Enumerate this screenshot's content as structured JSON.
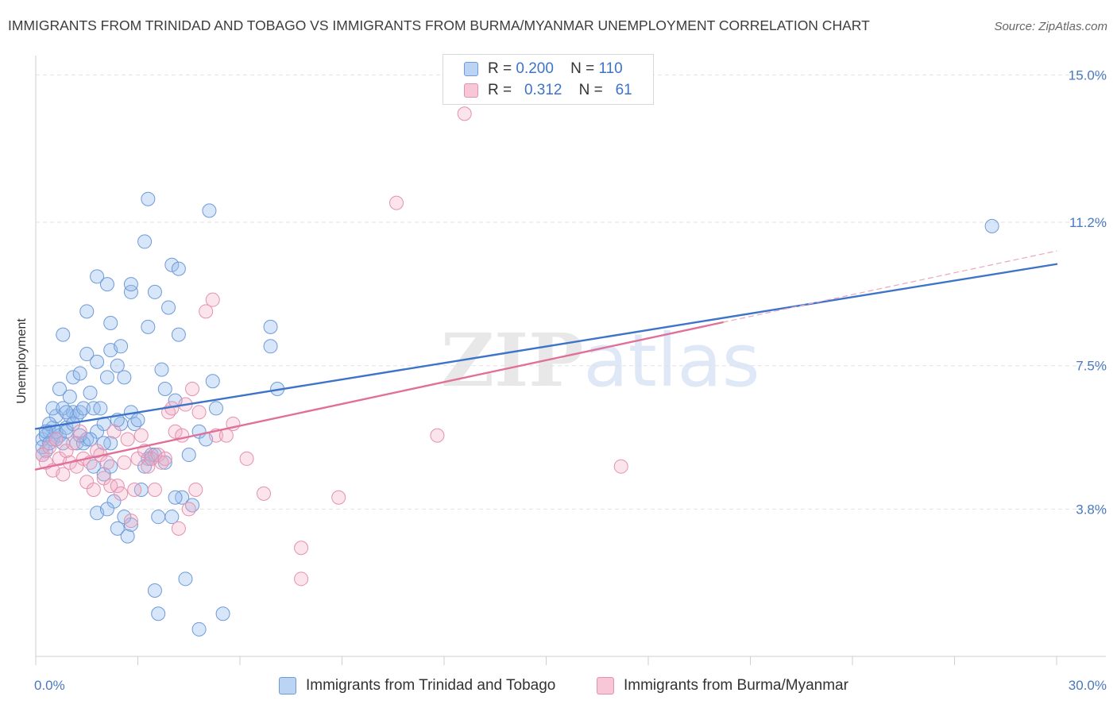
{
  "title": "IMMIGRANTS FROM TRINIDAD AND TOBAGO VS IMMIGRANTS FROM BURMA/MYANMAR UNEMPLOYMENT CORRELATION CHART",
  "source": "Source: ZipAtlas.com",
  "watermark": {
    "zip": "ZIP",
    "atlas": "atlas"
  },
  "colors": {
    "blue": "#3d74c9",
    "pink": "#e0709a",
    "blue_fill": "#a9c7ef",
    "pink_fill": "#f5b8cc"
  },
  "legend": {
    "blue": {
      "r_label": "R =",
      "r_value": "0.200",
      "n_label": "N =",
      "n_value": "110"
    },
    "pink": {
      "r_label": "R =",
      "r_value": "0.312",
      "n_label": "N =",
      "n_value": "61"
    }
  },
  "chart_data": {
    "type": "scatter",
    "title": "IMMIGRANTS FROM TRINIDAD AND TOBAGO VS IMMIGRANTS FROM BURMA/MYANMAR UNEMPLOYMENT CORRELATION CHART",
    "xlabel": "",
    "ylabel": "Unemployment",
    "xlim": [
      0,
      30
    ],
    "ylim": [
      0,
      15.5
    ],
    "x_tick_labels": [
      "0.0%",
      "30.0%"
    ],
    "y_ticks": [
      3.8,
      7.5,
      11.2,
      15.0
    ],
    "y_tick_labels": [
      "3.8%",
      "7.5%",
      "11.2%",
      "15.0%"
    ],
    "grid": true,
    "legend_position": "top-center",
    "series": [
      {
        "name": "Immigrants from Trinidad and Tobago",
        "color": "#3d74c9",
        "points": [
          [
            0.2,
            5.6
          ],
          [
            0.3,
            5.3
          ],
          [
            0.4,
            5.8
          ],
          [
            0.2,
            5.4
          ],
          [
            0.5,
            5.9
          ],
          [
            0.6,
            6.2
          ],
          [
            0.3,
            5.7
          ],
          [
            0.4,
            6.0
          ],
          [
            0.7,
            5.7
          ],
          [
            0.2,
            5.2
          ],
          [
            0.5,
            5.6
          ],
          [
            0.8,
            5.5
          ],
          [
            0.6,
            5.8
          ],
          [
            0.9,
            5.9
          ],
          [
            1.0,
            6.2
          ],
          [
            0.5,
            6.4
          ],
          [
            0.7,
            6.9
          ],
          [
            0.8,
            6.4
          ],
          [
            0.9,
            5.8
          ],
          [
            1.1,
            6.3
          ],
          [
            1.2,
            6.2
          ],
          [
            1.1,
            7.2
          ],
          [
            1.0,
            6.7
          ],
          [
            1.3,
            6.3
          ],
          [
            1.4,
            6.4
          ],
          [
            1.5,
            5.6
          ],
          [
            1.2,
            5.5
          ],
          [
            1.4,
            5.5
          ],
          [
            1.6,
            6.8
          ],
          [
            1.3,
            7.3
          ],
          [
            1.5,
            7.8
          ],
          [
            1.7,
            6.4
          ],
          [
            1.8,
            5.8
          ],
          [
            1.9,
            6.4
          ],
          [
            2.0,
            6.0
          ],
          [
            1.8,
            7.6
          ],
          [
            2.1,
            7.2
          ],
          [
            2.2,
            7.9
          ],
          [
            2.4,
            7.5
          ],
          [
            2.5,
            8.0
          ],
          [
            2.6,
            7.2
          ],
          [
            2.2,
            8.6
          ],
          [
            1.8,
            9.8
          ],
          [
            2.1,
            9.6
          ],
          [
            1.5,
            8.9
          ],
          [
            0.8,
            8.3
          ],
          [
            2.2,
            5.5
          ],
          [
            1.7,
            4.9
          ],
          [
            2.0,
            4.7
          ],
          [
            2.2,
            4.9
          ],
          [
            2.8,
            6.3
          ],
          [
            2.5,
            6.0
          ],
          [
            2.9,
            6.0
          ],
          [
            2.3,
            4.0
          ],
          [
            1.8,
            3.7
          ],
          [
            2.1,
            3.8
          ],
          [
            2.4,
            3.3
          ],
          [
            2.7,
            3.1
          ],
          [
            2.8,
            3.4
          ],
          [
            2.6,
            3.6
          ],
          [
            3.1,
            4.3
          ],
          [
            3.0,
            6.1
          ],
          [
            3.3,
            5.1
          ],
          [
            3.4,
            5.2
          ],
          [
            3.2,
            4.9
          ],
          [
            3.5,
            5.2
          ],
          [
            3.6,
            3.6
          ],
          [
            3.8,
            6.9
          ],
          [
            3.7,
            7.4
          ],
          [
            3.3,
            8.5
          ],
          [
            3.5,
            9.4
          ],
          [
            3.2,
            10.7
          ],
          [
            2.8,
            9.4
          ],
          [
            2.8,
            9.6
          ],
          [
            4.0,
            10.1
          ],
          [
            3.9,
            9.0
          ],
          [
            4.2,
            8.3
          ],
          [
            4.3,
            4.1
          ],
          [
            4.5,
            5.2
          ],
          [
            4.6,
            3.9
          ],
          [
            4.0,
            3.6
          ],
          [
            4.1,
            4.1
          ],
          [
            4.8,
            5.8
          ],
          [
            5.0,
            5.6
          ],
          [
            5.3,
            6.4
          ],
          [
            5.2,
            7.1
          ],
          [
            5.1,
            11.5
          ],
          [
            4.2,
            10.0
          ],
          [
            3.3,
            11.8
          ],
          [
            3.6,
            1.1
          ],
          [
            3.5,
            1.7
          ],
          [
            4.4,
            2.0
          ],
          [
            4.8,
            0.7
          ],
          [
            5.5,
            1.1
          ],
          [
            7.1,
            6.9
          ],
          [
            6.9,
            8.0
          ],
          [
            6.9,
            8.5
          ],
          [
            28.1,
            11.1
          ],
          [
            0.3,
            5.8
          ],
          [
            0.4,
            5.5
          ],
          [
            0.6,
            5.6
          ],
          [
            0.9,
            6.3
          ],
          [
            1.1,
            6.0
          ],
          [
            1.3,
            5.7
          ],
          [
            1.6,
            5.6
          ],
          [
            2.0,
            5.5
          ],
          [
            2.4,
            6.1
          ],
          [
            3.4,
            5.1
          ],
          [
            3.8,
            5.0
          ],
          [
            4.1,
            6.6
          ]
        ]
      },
      {
        "name": "Immigrants from Burma/Myanmar",
        "color": "#e0709a",
        "points": [
          [
            0.2,
            5.2
          ],
          [
            0.3,
            5.0
          ],
          [
            0.4,
            5.4
          ],
          [
            0.5,
            4.8
          ],
          [
            0.6,
            5.6
          ],
          [
            0.7,
            5.1
          ],
          [
            0.8,
            4.7
          ],
          [
            0.9,
            5.3
          ],
          [
            1.0,
            5.0
          ],
          [
            1.1,
            5.5
          ],
          [
            1.2,
            4.9
          ],
          [
            1.3,
            5.8
          ],
          [
            1.4,
            5.1
          ],
          [
            1.5,
            4.5
          ],
          [
            1.6,
            5.0
          ],
          [
            1.7,
            4.3
          ],
          [
            1.8,
            5.3
          ],
          [
            1.9,
            5.2
          ],
          [
            2.0,
            4.6
          ],
          [
            2.1,
            5.0
          ],
          [
            2.2,
            4.4
          ],
          [
            2.3,
            5.8
          ],
          [
            2.4,
            4.4
          ],
          [
            2.5,
            4.2
          ],
          [
            2.6,
            5.0
          ],
          [
            2.7,
            5.6
          ],
          [
            2.8,
            3.5
          ],
          [
            2.9,
            4.3
          ],
          [
            3.0,
            5.1
          ],
          [
            3.1,
            5.7
          ],
          [
            3.2,
            5.3
          ],
          [
            3.3,
            4.9
          ],
          [
            3.4,
            5.1
          ],
          [
            3.5,
            4.3
          ],
          [
            3.6,
            5.2
          ],
          [
            3.7,
            5.0
          ],
          [
            3.8,
            5.1
          ],
          [
            3.9,
            6.3
          ],
          [
            4.0,
            6.4
          ],
          [
            4.1,
            5.8
          ],
          [
            4.2,
            3.3
          ],
          [
            4.3,
            5.7
          ],
          [
            4.4,
            6.5
          ],
          [
            4.5,
            3.8
          ],
          [
            4.6,
            6.9
          ],
          [
            4.7,
            4.3
          ],
          [
            4.8,
            6.3
          ],
          [
            5.0,
            8.9
          ],
          [
            5.2,
            9.2
          ],
          [
            5.3,
            5.7
          ],
          [
            5.6,
            5.7
          ],
          [
            5.8,
            6.0
          ],
          [
            6.2,
            5.1
          ],
          [
            6.7,
            4.2
          ],
          [
            7.8,
            2.8
          ],
          [
            7.8,
            2.0
          ],
          [
            8.9,
            4.1
          ],
          [
            10.6,
            11.7
          ],
          [
            11.8,
            5.7
          ],
          [
            12.6,
            14.0
          ],
          [
            17.2,
            4.9
          ]
        ]
      }
    ],
    "trendlines": [
      {
        "series": "Immigrants from Trinidad and Tobago",
        "x": [
          0,
          30
        ],
        "y": [
          5.87,
          10.12
        ],
        "style": "solid"
      },
      {
        "series": "Immigrants from Burma/Myanmar",
        "x": [
          0,
          20.2
        ],
        "y": [
          4.82,
          8.62
        ],
        "style": "solid"
      },
      {
        "series": "Immigrants from Burma/Myanmar",
        "x": [
          20.2,
          30
        ],
        "y": [
          8.62,
          10.46
        ],
        "style": "dashed"
      }
    ]
  }
}
